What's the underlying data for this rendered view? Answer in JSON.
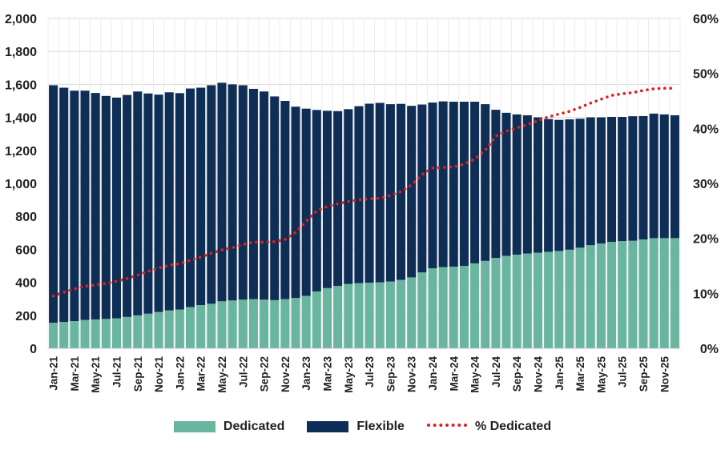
{
  "chart_data": {
    "type": "bar",
    "stacked": true,
    "categories": [
      "Jan-21",
      "Feb-21",
      "Mar-21",
      "Apr-21",
      "May-21",
      "Jun-21",
      "Jul-21",
      "Aug-21",
      "Sep-21",
      "Oct-21",
      "Nov-21",
      "Dec-21",
      "Jan-22",
      "Feb-22",
      "Mar-22",
      "Apr-22",
      "May-22",
      "Jun-22",
      "Jul-22",
      "Aug-22",
      "Sep-22",
      "Oct-22",
      "Nov-22",
      "Dec-22",
      "Jan-23",
      "Feb-23",
      "Mar-23",
      "Apr-23",
      "May-23",
      "Jun-23",
      "Jul-23",
      "Aug-23",
      "Sep-23",
      "Oct-23",
      "Nov-23",
      "Dec-23",
      "Jan-24",
      "Feb-24",
      "Mar-24",
      "Apr-24",
      "May-24",
      "Jun-24",
      "Jul-24",
      "Aug-24",
      "Sep-24",
      "Oct-24",
      "Nov-24",
      "Dec-24",
      "Jan-25",
      "Feb-25",
      "Mar-25",
      "Apr-25",
      "May-25",
      "Jun-25",
      "Jul-25",
      "Aug-25",
      "Sep-25",
      "Oct-25",
      "Nov-25",
      "Dec-25"
    ],
    "x_tick_labels": [
      "Jan-21",
      "Mar-21",
      "May-21",
      "Jul-21",
      "Sep-21",
      "Nov-21",
      "Jan-22",
      "Mar-22",
      "May-22",
      "Jul-22",
      "Sep-22",
      "Nov-22",
      "Jan-23",
      "Mar-23",
      "May-23",
      "Jul-23",
      "Sep-23",
      "Nov-23",
      "Jan-24",
      "Mar-24",
      "May-24",
      "Jul-24",
      "Sep-24",
      "Nov-24",
      "Jan-25",
      "Mar-25",
      "May-25",
      "Jul-25",
      "Sep-25",
      "Nov-25"
    ],
    "series": [
      {
        "name": "Dedicated",
        "color": "#6ab5a0",
        "values": [
          155,
          160,
          165,
          172,
          175,
          178,
          182,
          190,
          200,
          210,
          220,
          230,
          235,
          250,
          262,
          270,
          285,
          290,
          295,
          298,
          295,
          292,
          298,
          305,
          318,
          345,
          365,
          378,
          390,
          395,
          398,
          400,
          405,
          415,
          430,
          460,
          485,
          492,
          495,
          500,
          515,
          530,
          548,
          560,
          568,
          575,
          580,
          585,
          590,
          598,
          610,
          625,
          635,
          645,
          650,
          652,
          660,
          668,
          668,
          668
        ]
      },
      {
        "name": "Flexible",
        "color": "#0f2e56",
        "values": [
          1440,
          1420,
          1397,
          1390,
          1373,
          1352,
          1338,
          1346,
          1357,
          1335,
          1318,
          1322,
          1312,
          1325,
          1318,
          1325,
          1325,
          1310,
          1300,
          1275,
          1262,
          1235,
          1202,
          1160,
          1135,
          1100,
          1075,
          1060,
          1060,
          1073,
          1085,
          1088,
          1075,
          1067,
          1040,
          1018,
          1005,
          1005,
          1000,
          995,
          980,
          950,
          898,
          868,
          850,
          838,
          820,
          805,
          795,
          790,
          782,
          775,
          765,
          758,
          753,
          755,
          748,
          755,
          750,
          745
        ]
      }
    ],
    "line_series": {
      "name": "% Dedicated",
      "axis": "secondary",
      "color": "#e02020",
      "values": [
        9.5,
        10.2,
        10.8,
        11.3,
        11.5,
        11.8,
        12.2,
        12.7,
        13.3,
        14.0,
        14.6,
        15.1,
        15.4,
        16.0,
        16.6,
        17.3,
        17.9,
        18.3,
        18.9,
        19.3,
        19.3,
        19.4,
        19.8,
        21.1,
        23.1,
        25.0,
        25.8,
        26.3,
        26.7,
        27.0,
        27.2,
        27.3,
        27.8,
        28.5,
        29.7,
        31.6,
        32.8,
        32.9,
        33.0,
        33.5,
        34.4,
        36.0,
        38.6,
        39.5,
        40.1,
        40.7,
        41.4,
        42.1,
        42.6,
        43.1,
        43.8,
        44.6,
        45.3,
        46.0,
        46.3,
        46.5,
        46.9,
        47.2,
        47.3,
        47.3
      ]
    },
    "y_axis": {
      "min": 0,
      "max": 2000,
      "ticks": [
        0,
        200,
        400,
        600,
        800,
        1000,
        1200,
        1400,
        1600,
        1800,
        2000
      ],
      "tick_labels": [
        "0",
        "200",
        "400",
        "600",
        "800",
        "1,000",
        "1,200",
        "1,400",
        "1,600",
        "1,800",
        "2,000"
      ]
    },
    "y2_axis": {
      "min": 0,
      "max": 60,
      "ticks": [
        0,
        10,
        20,
        30,
        40,
        50,
        60
      ],
      "tick_labels": [
        "0%",
        "10%",
        "20%",
        "30%",
        "40%",
        "50%",
        "60%"
      ]
    },
    "grid": true,
    "legend": [
      "Dedicated",
      "Flexible",
      "% Dedicated"
    ],
    "legend_position": "bottom",
    "title": "",
    "xlabel": "",
    "ylabel": ""
  },
  "legend": {
    "dedicated_label": "Dedicated",
    "flexible_label": "Flexible",
    "pct_label": "% Dedicated"
  }
}
